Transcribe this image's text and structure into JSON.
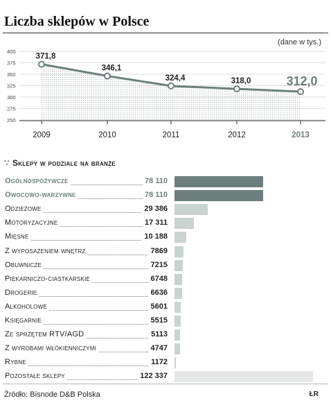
{
  "title": "Liczba sklepów w Polsce",
  "unit_note": "(dane w tys.)",
  "section_marker": "∵",
  "section_title": "Sklepy w podziale na branże",
  "source": "Źródło: Bisnode D&B Polska",
  "logo": "ŁR",
  "colors": {
    "dark_bar": "#6d7f7d",
    "light_bar": "#c9d3d0",
    "pale_bar": "#e4e7e6",
    "line": "#6d7f7d",
    "highlight_text": "#6d7f7d"
  },
  "chart_data": [
    {
      "type": "line",
      "x": [
        "2009",
        "2010",
        "2011",
        "2012",
        "2013"
      ],
      "values": [
        371.8,
        346.1,
        324.4,
        318.0,
        312.0
      ],
      "data_labels": [
        "371,8",
        "346,1",
        "324,4",
        "318,0",
        "312,0"
      ],
      "yticks": [
        "400",
        "375",
        "350",
        "325",
        "300",
        "275",
        "250"
      ],
      "ylim": [
        250,
        400
      ],
      "grid": true
    },
    {
      "type": "bar",
      "orientation": "horizontal",
      "categories": [
        "Ogólnospożywcze",
        "Owocowo-warzywne",
        "Odzieżowe",
        "Motoryzacyjne",
        "Mięsne",
        "Z wyposażeniem wnętrz",
        "Obuwnicze",
        "Piekarniczo-ciastkarskie",
        "Drogerie",
        "Alkoholowe",
        "Księgarnie",
        "Ze sprzętem RTV/AGD",
        "Z wyrobami włókienniczymi",
        "Rybne",
        "Pozostałe sklepy"
      ],
      "values": [
        78110,
        78110,
        29386,
        17311,
        10188,
        7869,
        7215,
        6748,
        6636,
        5601,
        5515,
        5113,
        4747,
        1172,
        122337
      ],
      "value_labels": [
        "78 110",
        "78 110",
        "29 386",
        "17 311",
        "10 188",
        "7869",
        "7215",
        "6748",
        "6636",
        "5601",
        "5515",
        "5113",
        "4747",
        "1172",
        "122 337"
      ],
      "highlighted": [
        true,
        true,
        false,
        false,
        false,
        false,
        false,
        false,
        false,
        false,
        false,
        false,
        false,
        false,
        false
      ]
    }
  ]
}
